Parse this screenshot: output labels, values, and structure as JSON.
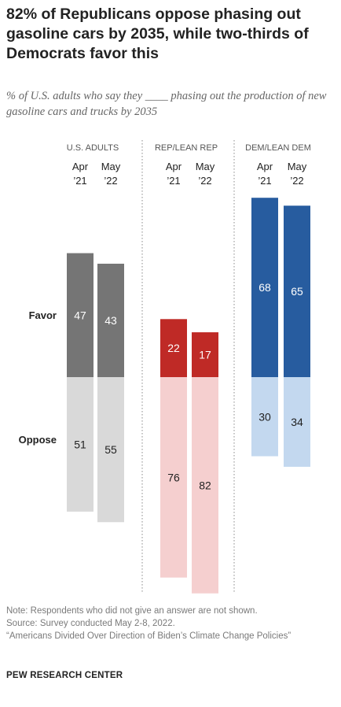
{
  "title": "82% of Republicans oppose phasing out gasoline cars by 2035, while two-thirds of Democrats favor this",
  "subtitle": "% of U.S. adults who say they ____ phasing out the production of new gasoline cars and trucks by 2035",
  "row_labels": {
    "favor": "Favor",
    "oppose": "Oppose"
  },
  "notes": [
    "Note: Respondents who did not give an answer are not shown.",
    "Source: Survey conducted May 2-8, 2022.",
    "“Americans Divided Over Direction of Biden’s Climate Change Policies”"
  ],
  "brand": "PEW RESEARCH CENTER",
  "colors": {
    "us_favor": "#757575",
    "us_oppose": "#d9d9d9",
    "rep_favor": "#bf2a26",
    "rep_oppose": "#f5cfcf",
    "dem_favor": "#275c9f",
    "dem_oppose": "#c3d8ef",
    "text_dark": "#222222",
    "separator": "#888888"
  },
  "chart_data": {
    "type": "bar",
    "groups": [
      {
        "name": "U.S. ADULTS",
        "color_favor": "#757575",
        "color_oppose": "#d9d9d9",
        "periods": [
          {
            "label1": "Apr",
            "label2": "’21",
            "favor": 47,
            "oppose": 51
          },
          {
            "label1": "May",
            "label2": "’22",
            "favor": 43,
            "oppose": 55
          }
        ]
      },
      {
        "name": "REP/LEAN REP",
        "color_favor": "#bf2a26",
        "color_oppose": "#f5cfcf",
        "periods": [
          {
            "label1": "Apr",
            "label2": "’21",
            "favor": 22,
            "oppose": 76
          },
          {
            "label1": "May",
            "label2": "’22",
            "favor": 17,
            "oppose": 82
          }
        ]
      },
      {
        "name": "DEM/LEAN DEM",
        "color_favor": "#275c9f",
        "color_oppose": "#c3d8ef",
        "periods": [
          {
            "label1": "Apr",
            "label2": "’21",
            "favor": 68,
            "oppose": 30
          },
          {
            "label1": "May",
            "label2": "’22",
            "favor": 65,
            "oppose": 34
          }
        ]
      }
    ],
    "series": [
      {
        "name": "Favor",
        "values": [
          47,
          43,
          22,
          17,
          68,
          65
        ]
      },
      {
        "name": "Oppose",
        "values": [
          51,
          55,
          76,
          82,
          30,
          34
        ]
      }
    ],
    "categories": [
      "U.S. ADULTS Apr '21",
      "U.S. ADULTS May '22",
      "REP/LEAN REP Apr '21",
      "REP/LEAN REP May '22",
      "DEM/LEAN DEM Apr '21",
      "DEM/LEAN DEM May '22"
    ]
  }
}
